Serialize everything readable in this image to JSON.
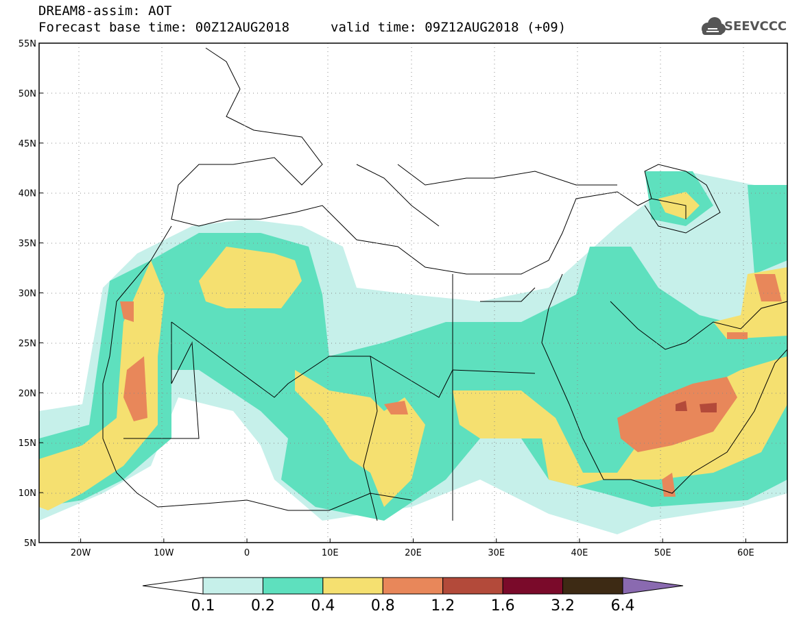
{
  "header": {
    "title": "DREAM8-assim: AOT",
    "base_time": "Forecast base time: 00Z12AUG2018",
    "valid_time": "valid time: 09Z12AUG2018 (+09)",
    "logo_text": "SEEVCCC",
    "logo_icon": "cloud-icon"
  },
  "map": {
    "lat_labels": [
      "55N",
      "50N",
      "45N",
      "40N",
      "35N",
      "30N",
      "25N",
      "20N",
      "15N",
      "10N",
      "5N"
    ],
    "lon_labels": [
      "20W",
      "10W",
      "0",
      "10E",
      "20E",
      "30E",
      "40E",
      "50E",
      "60E"
    ],
    "lon_range": [
      -25,
      65
    ],
    "lat_range": [
      5,
      55
    ],
    "background": "#ffffff",
    "border_color": "#000000"
  },
  "colorbar": {
    "levels": [
      "0.1",
      "0.2",
      "0.4",
      "0.8",
      "1.2",
      "1.6",
      "3.2",
      "6.4"
    ],
    "colors": [
      "#c6f0ea",
      "#5ee0be",
      "#f5e070",
      "#e8875a",
      "#b34a3a",
      "#7a0a2a",
      "#3d2a14",
      "#8a6ab0"
    ],
    "under_color": "#ffffff"
  }
}
